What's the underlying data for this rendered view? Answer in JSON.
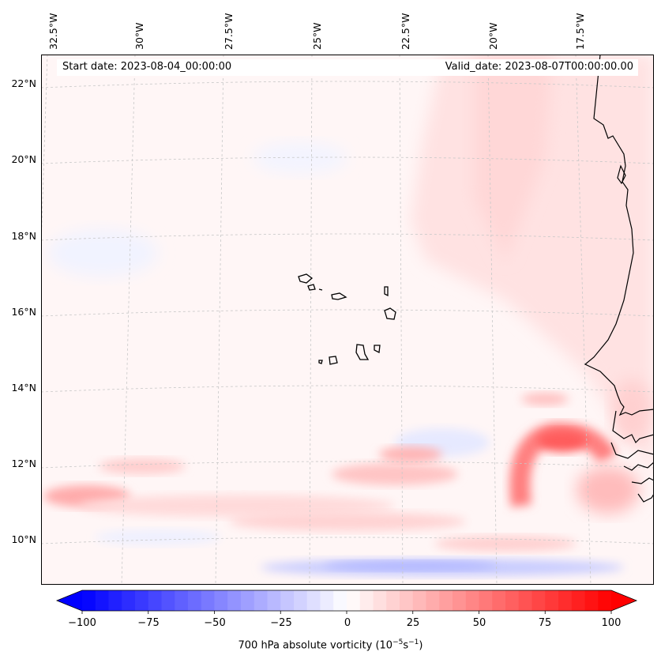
{
  "map": {
    "start_date": "Start date: 2023-08-04_00:00:00",
    "valid_date": "Valid_date: 2023-08-07T00:00:00.00",
    "lon_labels": [
      "32.5°W",
      "30°W",
      "27.5°W",
      "25°W",
      "22.5°W",
      "20°W",
      "17.5°W"
    ],
    "lat_labels": [
      "22°N",
      "20°N",
      "18°N",
      "16°N",
      "14°N",
      "12°N",
      "10°N"
    ],
    "lon_values": [
      -32.5,
      -30,
      -27.5,
      -25,
      -22.5,
      -20,
      -17.5
    ],
    "lat_values": [
      22,
      20,
      18,
      16,
      14,
      12,
      10
    ]
  },
  "colorbar": {
    "label_prefix": "700 hPa absolute vorticity (10",
    "label_exp1": "−5",
    "label_mid": "s",
    "label_exp2": "−1",
    "label_suffix": ")",
    "ticks": [
      "−100",
      "−75",
      "−50",
      "−25",
      "0",
      "25",
      "50",
      "75",
      "100"
    ],
    "min": -100,
    "max": 100,
    "step": 5,
    "colors": {
      "low": "#0000ff",
      "mid": "#ffffff",
      "high": "#ff0000"
    }
  }
}
